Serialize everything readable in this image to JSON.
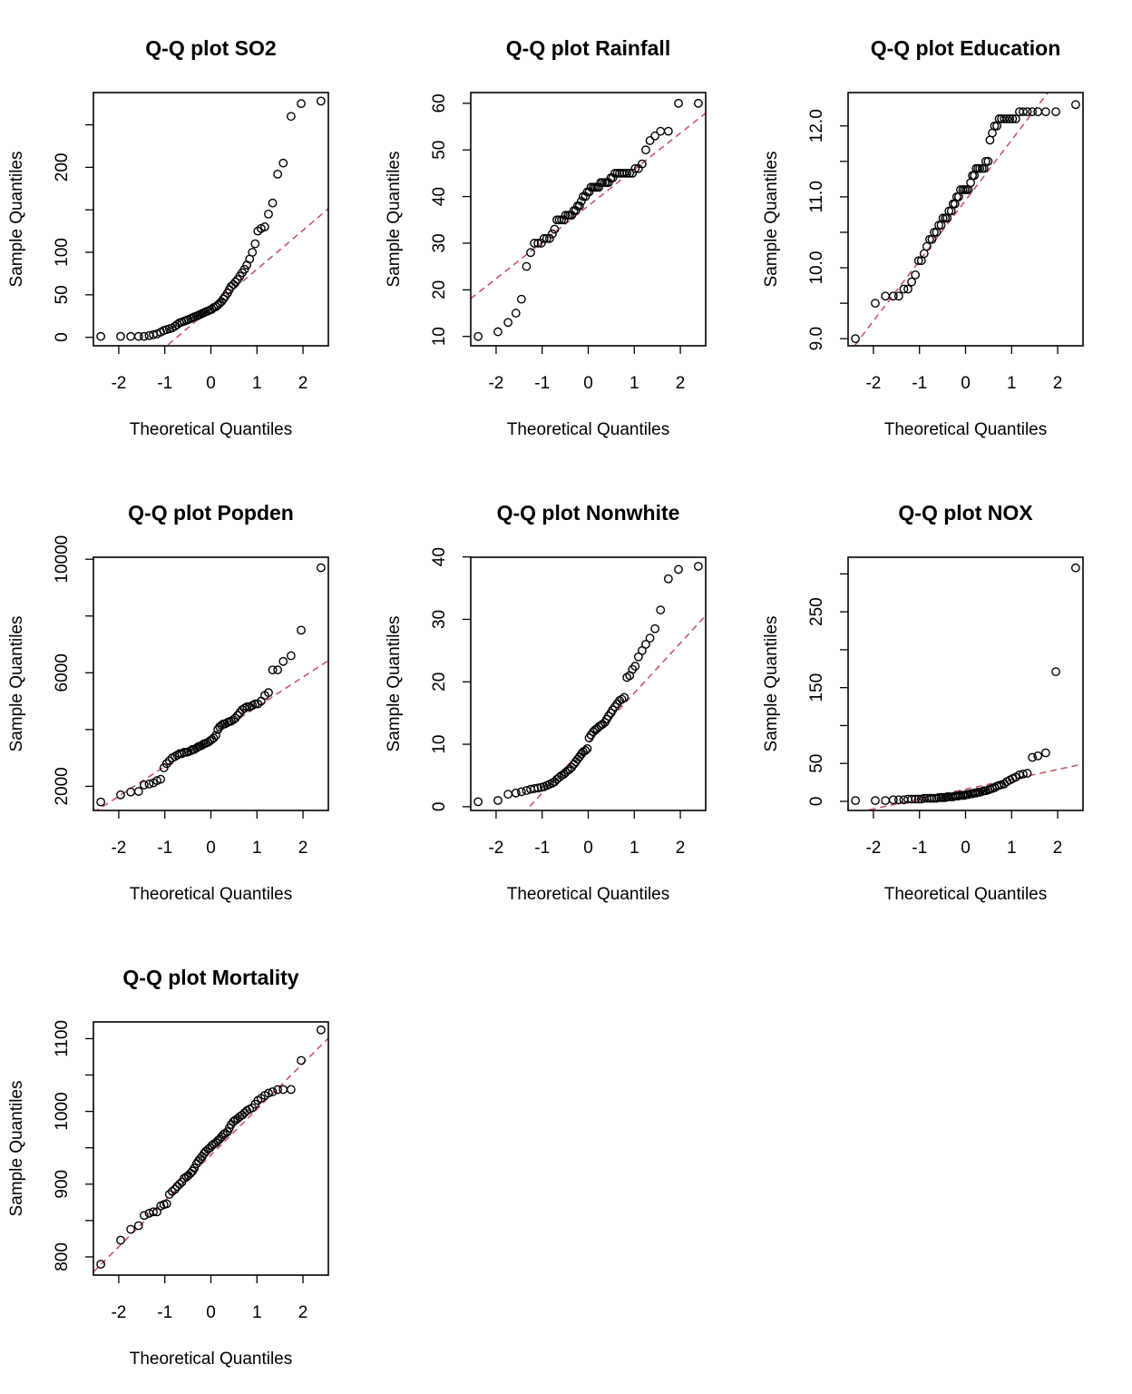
{
  "figure": {
    "line_color": "#CD5367",
    "point_color": "#000000"
  },
  "chart_data": [
    {
      "type": "scatter",
      "title": "Q-Q plot SO2",
      "xlabel": "Theoretical Quantiles",
      "ylabel": "Sample Quantiles",
      "xlim": [
        -2.55,
        2.55
      ],
      "ylim": [
        -10,
        288
      ],
      "x_ticks": [
        -2,
        -1,
        0,
        1,
        2
      ],
      "y_ticks": [
        0,
        50,
        100,
        150,
        200,
        250
      ],
      "y_tick_labels": [
        "0",
        "50",
        "100",
        "",
        "200",
        ""
      ],
      "line": {
        "intercept": 34,
        "slope": 46
      },
      "x": [
        -2.39,
        -1.96,
        -1.74,
        -1.57,
        -1.45,
        -1.34,
        -1.25,
        -1.17,
        -1.09,
        -1.02,
        -0.96,
        -0.9,
        -0.84,
        -0.78,
        -0.73,
        -0.68,
        -0.63,
        -0.58,
        -0.53,
        -0.49,
        -0.44,
        -0.4,
        -0.36,
        -0.31,
        -0.27,
        -0.23,
        -0.19,
        -0.15,
        -0.11,
        -0.06,
        -0.02,
        0.02,
        0.06,
        0.11,
        0.15,
        0.19,
        0.23,
        0.27,
        0.31,
        0.36,
        0.4,
        0.44,
        0.49,
        0.53,
        0.58,
        0.63,
        0.68,
        0.73,
        0.78,
        0.84,
        0.9,
        0.96,
        1.02,
        1.09,
        1.17,
        1.25,
        1.34,
        1.45,
        1.57,
        1.74,
        1.96,
        2.39
      ],
      "y": [
        1,
        1,
        1,
        1,
        1,
        2,
        3,
        4,
        6,
        8,
        9,
        10,
        11,
        13,
        15,
        17,
        18,
        19,
        20,
        21,
        22,
        23,
        24,
        25,
        26,
        27,
        28,
        29,
        30,
        31,
        32,
        33,
        35,
        36,
        38,
        40,
        42,
        45,
        48,
        52,
        56,
        60,
        62,
        65,
        68,
        72,
        76,
        80,
        85,
        92,
        100,
        110,
        125,
        128,
        130,
        145,
        158,
        192,
        205,
        260,
        275,
        278
      ]
    },
    {
      "type": "scatter",
      "title": "Q-Q plot Rainfall",
      "xlabel": "Theoretical Quantiles",
      "ylabel": "Sample Quantiles",
      "xlim": [
        -2.55,
        2.55
      ],
      "ylim": [
        8,
        62.3
      ],
      "x_ticks": [
        -2,
        -1,
        0,
        1,
        2
      ],
      "y_ticks": [
        10,
        20,
        30,
        40,
        50,
        60
      ],
      "y_tick_labels": [
        "10",
        "20",
        "30",
        "40",
        "50",
        "60"
      ],
      "line": {
        "intercept": 38,
        "slope": 7.8
      },
      "x": [
        -2.39,
        -1.96,
        -1.74,
        -1.57,
        -1.45,
        -1.34,
        -1.25,
        -1.17,
        -1.09,
        -1.02,
        -0.96,
        -0.9,
        -0.84,
        -0.78,
        -0.73,
        -0.68,
        -0.63,
        -0.58,
        -0.53,
        -0.49,
        -0.44,
        -0.4,
        -0.36,
        -0.31,
        -0.27,
        -0.23,
        -0.19,
        -0.15,
        -0.11,
        -0.06,
        -0.02,
        0.02,
        0.06,
        0.11,
        0.15,
        0.19,
        0.23,
        0.27,
        0.31,
        0.36,
        0.4,
        0.44,
        0.49,
        0.53,
        0.58,
        0.63,
        0.68,
        0.73,
        0.78,
        0.84,
        0.9,
        0.96,
        1.02,
        1.09,
        1.17,
        1.25,
        1.34,
        1.45,
        1.57,
        1.74,
        1.96,
        2.39
      ],
      "y": [
        10,
        11,
        13,
        15,
        18,
        25,
        28,
        30,
        30,
        30,
        31,
        31,
        31,
        32,
        33,
        35,
        35,
        35,
        35,
        36,
        36,
        36,
        36,
        37,
        37,
        38,
        38,
        39,
        40,
        40,
        41,
        41,
        42,
        42,
        42,
        42,
        42,
        43,
        43,
        43,
        43,
        43,
        44,
        44,
        45,
        45,
        45,
        45,
        45,
        45,
        45,
        45,
        46,
        46,
        47,
        50,
        52,
        53,
        54,
        54,
        60,
        60
      ]
    },
    {
      "type": "scatter",
      "title": "Q-Q plot Education",
      "xlabel": "Theoretical Quantiles",
      "ylabel": "Sample Quantiles",
      "xlim": [
        -2.55,
        2.55
      ],
      "ylim": [
        8.9,
        12.47
      ],
      "x_ticks": [
        -2,
        -1,
        0,
        1,
        2
      ],
      "y_ticks": [
        9.0,
        9.5,
        10.0,
        10.5,
        11.0,
        11.5,
        12.0
      ],
      "y_tick_labels": [
        "9.0",
        "",
        "10.0",
        "",
        "11.0",
        "",
        "12.0"
      ],
      "line": {
        "intercept": 10.95,
        "slope": 0.85
      },
      "x": [
        -2.39,
        -1.96,
        -1.74,
        -1.57,
        -1.45,
        -1.34,
        -1.25,
        -1.17,
        -1.09,
        -1.02,
        -0.96,
        -0.9,
        -0.84,
        -0.78,
        -0.73,
        -0.68,
        -0.63,
        -0.58,
        -0.53,
        -0.49,
        -0.44,
        -0.4,
        -0.36,
        -0.31,
        -0.27,
        -0.23,
        -0.19,
        -0.15,
        -0.11,
        -0.06,
        -0.02,
        0.02,
        0.06,
        0.11,
        0.15,
        0.19,
        0.23,
        0.27,
        0.31,
        0.36,
        0.4,
        0.44,
        0.49,
        0.53,
        0.58,
        0.63,
        0.68,
        0.73,
        0.78,
        0.84,
        0.9,
        0.96,
        1.02,
        1.09,
        1.17,
        1.25,
        1.34,
        1.45,
        1.57,
        1.74,
        1.96,
        2.39
      ],
      "y": [
        9.0,
        9.5,
        9.6,
        9.6,
        9.6,
        9.7,
        9.7,
        9.8,
        9.9,
        10.1,
        10.1,
        10.2,
        10.3,
        10.4,
        10.4,
        10.5,
        10.5,
        10.6,
        10.6,
        10.7,
        10.7,
        10.7,
        10.8,
        10.8,
        10.9,
        10.9,
        11.0,
        11.0,
        11.1,
        11.1,
        11.1,
        11.1,
        11.1,
        11.2,
        11.3,
        11.3,
        11.4,
        11.4,
        11.4,
        11.4,
        11.4,
        11.5,
        11.5,
        11.8,
        11.9,
        12.0,
        12.0,
        12.1,
        12.1,
        12.1,
        12.1,
        12.1,
        12.1,
        12.1,
        12.2,
        12.2,
        12.2,
        12.2,
        12.2,
        12.2,
        12.2,
        12.3
      ]
    },
    {
      "type": "scatter",
      "title": "Q-Q plot Popden",
      "xlabel": "Theoretical Quantiles",
      "ylabel": "Sample Quantiles",
      "xlim": [
        -2.55,
        2.55
      ],
      "ylim": [
        1150,
        10070
      ],
      "x_ticks": [
        -2,
        -1,
        0,
        1,
        2
      ],
      "y_ticks": [
        2000,
        4000,
        6000,
        8000,
        10000
      ],
      "y_tick_labels": [
        "2000",
        "",
        "6000",
        "",
        "10000"
      ],
      "line": {
        "intercept": 3750,
        "slope": 1050
      },
      "x": [
        -2.39,
        -1.96,
        -1.74,
        -1.57,
        -1.45,
        -1.34,
        -1.25,
        -1.17,
        -1.09,
        -1.02,
        -0.96,
        -0.9,
        -0.84,
        -0.78,
        -0.73,
        -0.68,
        -0.63,
        -0.58,
        -0.53,
        -0.49,
        -0.44,
        -0.4,
        -0.36,
        -0.31,
        -0.27,
        -0.23,
        -0.19,
        -0.15,
        -0.11,
        -0.06,
        -0.02,
        0.02,
        0.06,
        0.11,
        0.15,
        0.19,
        0.23,
        0.27,
        0.31,
        0.36,
        0.4,
        0.44,
        0.49,
        0.53,
        0.58,
        0.63,
        0.68,
        0.73,
        0.78,
        0.84,
        0.9,
        0.96,
        1.02,
        1.09,
        1.17,
        1.25,
        1.34,
        1.45,
        1.57,
        1.74,
        1.96,
        2.39
      ],
      "y": [
        1450,
        1700,
        1800,
        1820,
        2050,
        2080,
        2120,
        2200,
        2250,
        2650,
        2800,
        2900,
        3000,
        3050,
        3100,
        3150,
        3150,
        3200,
        3200,
        3220,
        3250,
        3300,
        3300,
        3350,
        3400,
        3420,
        3450,
        3500,
        3520,
        3550,
        3600,
        3650,
        3700,
        3800,
        4000,
        4100,
        4150,
        4200,
        4200,
        4250,
        4280,
        4300,
        4350,
        4400,
        4500,
        4600,
        4700,
        4750,
        4800,
        4800,
        4850,
        4900,
        4900,
        5000,
        5200,
        5300,
        6100,
        6100,
        6400,
        6600,
        7500,
        9700
      ]
    },
    {
      "type": "scatter",
      "title": "Q-Q plot Nonwhite",
      "xlabel": "Theoretical Quantiles",
      "ylabel": "Sample Quantiles",
      "xlim": [
        -2.55,
        2.55
      ],
      "ylim": [
        -0.6,
        39.95
      ],
      "x_ticks": [
        -2,
        -1,
        0,
        1,
        2
      ],
      "y_ticks": [
        0,
        10,
        20,
        30,
        40
      ],
      "y_tick_labels": [
        "0",
        "10",
        "20",
        "30",
        "40"
      ],
      "line": {
        "intercept": 10.2,
        "slope": 8
      },
      "x": [
        -2.39,
        -1.96,
        -1.74,
        -1.57,
        -1.45,
        -1.34,
        -1.25,
        -1.17,
        -1.09,
        -1.02,
        -0.96,
        -0.9,
        -0.84,
        -0.78,
        -0.73,
        -0.68,
        -0.63,
        -0.58,
        -0.53,
        -0.49,
        -0.44,
        -0.4,
        -0.36,
        -0.31,
        -0.27,
        -0.23,
        -0.19,
        -0.15,
        -0.11,
        -0.06,
        -0.02,
        0.02,
        0.06,
        0.11,
        0.15,
        0.19,
        0.23,
        0.27,
        0.31,
        0.36,
        0.4,
        0.44,
        0.49,
        0.53,
        0.58,
        0.63,
        0.68,
        0.73,
        0.78,
        0.84,
        0.9,
        0.96,
        1.02,
        1.09,
        1.17,
        1.25,
        1.34,
        1.45,
        1.57,
        1.74,
        1.96,
        2.39
      ],
      "y": [
        0.8,
        1.0,
        2.0,
        2.2,
        2.4,
        2.6,
        2.8,
        2.9,
        3.0,
        3.1,
        3.2,
        3.4,
        3.6,
        3.8,
        4.0,
        4.4,
        4.7,
        5.0,
        5.2,
        5.5,
        5.8,
        6.0,
        6.3,
        6.8,
        7.2,
        7.6,
        8.0,
        8.4,
        8.8,
        9.0,
        9.3,
        11.0,
        11.5,
        12.0,
        12.3,
        12.5,
        12.8,
        13.0,
        13.2,
        13.5,
        14.0,
        14.5,
        15.0,
        15.5,
        16.0,
        16.5,
        17.0,
        17.2,
        17.5,
        20.7,
        21.0,
        22.0,
        22.5,
        24.0,
        25.0,
        26.0,
        27.0,
        28.5,
        31.5,
        36.5,
        38.0,
        38.5
      ]
    },
    {
      "type": "scatter",
      "title": "Q-Q plot NOX",
      "xlabel": "Theoretical Quantiles",
      "ylabel": "Sample Quantiles",
      "xlim": [
        -2.55,
        2.55
      ],
      "ylim": [
        -12,
        322
      ],
      "x_ticks": [
        -2,
        -1,
        0,
        1,
        2
      ],
      "y_ticks": [
        0,
        50,
        100,
        150,
        200,
        250,
        300
      ],
      "y_tick_labels": [
        "0",
        "50",
        "",
        "150",
        "",
        "250",
        ""
      ],
      "line": {
        "intercept": 16,
        "slope": 13
      },
      "x": [
        -2.39,
        -1.96,
        -1.74,
        -1.57,
        -1.45,
        -1.34,
        -1.25,
        -1.17,
        -1.09,
        -1.02,
        -0.96,
        -0.9,
        -0.84,
        -0.78,
        -0.73,
        -0.68,
        -0.63,
        -0.58,
        -0.53,
        -0.49,
        -0.44,
        -0.4,
        -0.36,
        -0.31,
        -0.27,
        -0.23,
        -0.19,
        -0.15,
        -0.11,
        -0.06,
        -0.02,
        0.02,
        0.06,
        0.11,
        0.15,
        0.19,
        0.23,
        0.27,
        0.31,
        0.36,
        0.4,
        0.44,
        0.49,
        0.53,
        0.58,
        0.63,
        0.68,
        0.73,
        0.78,
        0.84,
        0.9,
        0.96,
        1.02,
        1.09,
        1.17,
        1.25,
        1.34,
        1.45,
        1.57,
        1.74,
        1.96,
        2.39
      ],
      "y": [
        1,
        1,
        1,
        2,
        2,
        2,
        3,
        3,
        3,
        3,
        3,
        4,
        4,
        4,
        4,
        4,
        4,
        5,
        5,
        5,
        5,
        6,
        6,
        6,
        6,
        7,
        7,
        7,
        8,
        8,
        8,
        9,
        9,
        10,
        10,
        11,
        11,
        12,
        12,
        13,
        14,
        14,
        15,
        16,
        17,
        18,
        20,
        21,
        22,
        23,
        26,
        28,
        30,
        32,
        35,
        36,
        37,
        58,
        60,
        64,
        171,
        308
      ]
    },
    {
      "type": "scatter",
      "title": "Q-Q plot Mortality",
      "xlabel": "Theoretical Quantiles",
      "ylabel": "Sample Quantiles",
      "xlim": [
        -2.55,
        2.55
      ],
      "ylim": [
        775,
        1123
      ],
      "x_ticks": [
        -2,
        -1,
        0,
        1,
        2
      ],
      "y_ticks": [
        800,
        850,
        900,
        950,
        1000,
        1050,
        1100
      ],
      "y_tick_labels": [
        "800",
        "",
        "900",
        "",
        "1000",
        "",
        "1100"
      ],
      "line": {
        "intercept": 940,
        "slope": 63
      },
      "x": [
        -2.39,
        -1.96,
        -1.74,
        -1.57,
        -1.45,
        -1.34,
        -1.25,
        -1.17,
        -1.09,
        -1.02,
        -0.96,
        -0.9,
        -0.84,
        -0.78,
        -0.73,
        -0.68,
        -0.63,
        -0.58,
        -0.53,
        -0.49,
        -0.44,
        -0.4,
        -0.36,
        -0.31,
        -0.27,
        -0.23,
        -0.19,
        -0.15,
        -0.11,
        -0.06,
        -0.02,
        0.02,
        0.06,
        0.11,
        0.15,
        0.19,
        0.23,
        0.27,
        0.31,
        0.36,
        0.4,
        0.44,
        0.49,
        0.53,
        0.58,
        0.63,
        0.68,
        0.73,
        0.78,
        0.84,
        0.9,
        0.96,
        1.02,
        1.09,
        1.17,
        1.25,
        1.34,
        1.45,
        1.57,
        1.74,
        1.96,
        2.39
      ],
      "y": [
        790,
        823,
        838,
        843,
        857,
        860,
        862,
        862,
        870,
        872,
        873,
        886,
        890,
        893,
        897,
        900,
        903,
        908,
        910,
        912,
        915,
        918,
        922,
        928,
        932,
        935,
        938,
        942,
        945,
        948,
        950,
        953,
        955,
        957,
        960,
        962,
        965,
        968,
        970,
        972,
        977,
        982,
        986,
        988,
        990,
        993,
        995,
        998,
        1001,
        1003,
        1005,
        1010,
        1015,
        1018,
        1022,
        1025,
        1027,
        1030,
        1030,
        1030,
        1070,
        1112
      ]
    }
  ]
}
